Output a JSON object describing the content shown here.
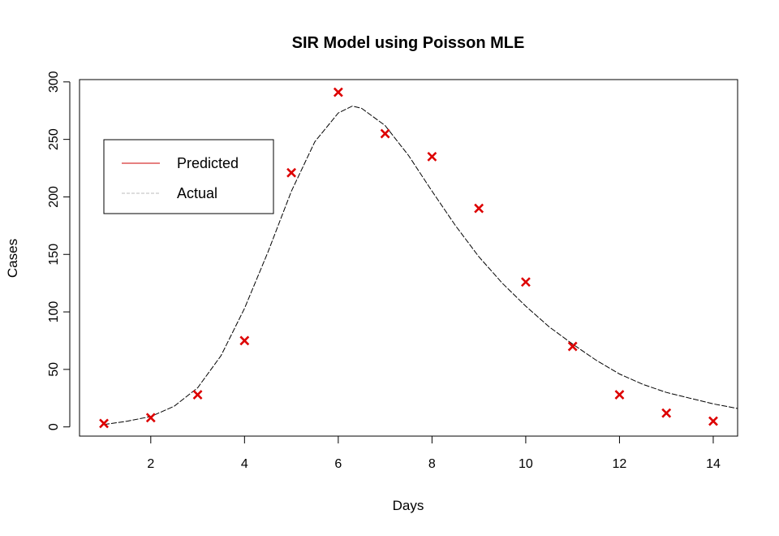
{
  "chart_data": {
    "type": "line",
    "title": "SIR Model using Poisson MLE",
    "xlabel": "Days",
    "ylabel": "Cases",
    "xlim": [
      0.48,
      14.52
    ],
    "ylim": [
      -8,
      302
    ],
    "xticks": [
      2,
      4,
      6,
      8,
      10,
      12,
      14
    ],
    "yticks": [
      0,
      50,
      100,
      150,
      200,
      250,
      300
    ],
    "grid": false,
    "legend_position": "top-left",
    "legend": [
      {
        "label": "Predicted",
        "color": "#cc0000",
        "style": "solid"
      },
      {
        "label": "Actual",
        "color": "#bbbbbb",
        "style": "dashed"
      }
    ],
    "series": [
      {
        "role": "curve",
        "color": "#000000",
        "style": "dashed",
        "x": [
          1,
          1.5,
          2,
          2.5,
          3,
          3.5,
          4,
          4.5,
          5,
          5.5,
          6,
          6.3,
          6.5,
          7,
          7.5,
          8,
          8.5,
          9,
          9.5,
          10,
          10.5,
          11,
          11.5,
          12,
          12.5,
          13,
          13.5,
          14,
          14.52
        ],
        "y": [
          2,
          5,
          9,
          18,
          34,
          62,
          103,
          152,
          205,
          248,
          273,
          279,
          277,
          262,
          236,
          205,
          175,
          148,
          125,
          105,
          87,
          72,
          58,
          46,
          37,
          30,
          25,
          20,
          16
        ]
      },
      {
        "role": "points",
        "color": "#dd0000",
        "marker": "x",
        "x": [
          1,
          2,
          3,
          4,
          5,
          6,
          7,
          8,
          9,
          10,
          11,
          12,
          13,
          14
        ],
        "y": [
          3,
          8,
          28,
          75,
          221,
          291,
          255,
          235,
          190,
          126,
          70,
          28,
          12,
          5
        ]
      }
    ]
  }
}
